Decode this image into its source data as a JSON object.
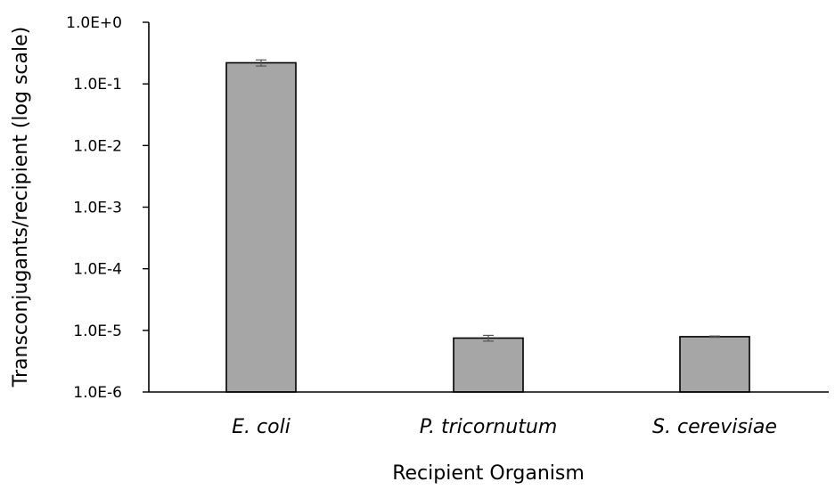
{
  "chart_data": {
    "type": "bar",
    "title": "",
    "xlabel": "Recipient Organism",
    "ylabel": "Transconjugants/recipient (log scale)",
    "yscale": "log",
    "ylim": [
      1e-06,
      1
    ],
    "yticks": [
      {
        "value": 1,
        "label": "1.0E+0"
      },
      {
        "value": 0.1,
        "label": "1.0E-1"
      },
      {
        "value": 0.01,
        "label": "1.0E-2"
      },
      {
        "value": 0.001,
        "label": "1.0E-3"
      },
      {
        "value": 0.0001,
        "label": "1.0E-4"
      },
      {
        "value": 1e-05,
        "label": "1.0E-5"
      },
      {
        "value": 1e-06,
        "label": "1.0E-6"
      }
    ],
    "categories": [
      "E. coli",
      "P. tricornutum",
      "S. cerevisiae"
    ],
    "values": [
      0.22,
      7.5e-06,
      7.9e-06
    ],
    "error": [
      0.025,
      8e-07,
      2e-07
    ],
    "grid": false,
    "legend": "none",
    "colors": {
      "bar_fill": "#a6a6a6",
      "bar_stroke": "#000000",
      "axis": "#000000",
      "error_bar": "#555555"
    }
  }
}
